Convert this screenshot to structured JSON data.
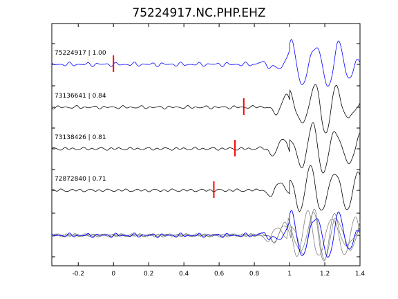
{
  "chart_data": {
    "type": "line",
    "title": "75224917.NC.PHP.EHZ",
    "xlabel": "",
    "ylabel": "",
    "xlim": [
      -0.35,
      1.4
    ],
    "x_ticks": [
      -0.2,
      0,
      0.2,
      0.4,
      0.6,
      0.8,
      1,
      1.2,
      1.4
    ],
    "x_tick_labels": [
      "-0.2",
      "0",
      "0.2",
      "0.4",
      "0.6",
      "0.8",
      "1",
      "1.2",
      "1.4"
    ],
    "grid": false,
    "colors": {
      "master": "#0000ff",
      "trace": "#000000",
      "overlay": "#808080",
      "pick": "#ff0000"
    },
    "series": [
      {
        "label": "75224917 | 1.00",
        "color": "#0000ff",
        "pick_time": 0.0,
        "alignment_shift": 0.0
      },
      {
        "label": "73136641 | 0.84",
        "color": "#000000",
        "pick_time": 0.74,
        "alignment_shift": 0.01
      },
      {
        "label": "73138426 | 0.81",
        "color": "#000000",
        "pick_time": 0.69,
        "alignment_shift": -0.008
      },
      {
        "label": "72872840 | 0.71",
        "color": "#000000",
        "pick_time": 0.57,
        "alignment_shift": 0.015
      }
    ],
    "overlay": {
      "master_color": "#0000ff",
      "others_color": "#808080"
    }
  }
}
